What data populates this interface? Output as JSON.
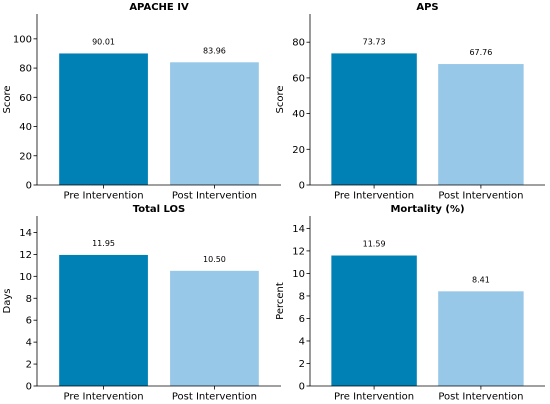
{
  "colors": {
    "pre": "#0081b6",
    "post": "#98c8e7",
    "axis": "#000000",
    "background": "#ffffff"
  },
  "chart_data": [
    {
      "type": "bar",
      "title": "APACHE IV",
      "xlabel": "",
      "ylabel": "Score",
      "categories": [
        "Pre Intervention",
        "Post Intervention"
      ],
      "values": [
        90.01,
        83.96
      ],
      "value_labels": [
        "90.01",
        "83.96"
      ],
      "ylim": [
        0,
        117
      ],
      "yticks": [
        0,
        20,
        40,
        60,
        80,
        100
      ],
      "grid": false,
      "legend": false
    },
    {
      "type": "bar",
      "title": "APS",
      "xlabel": "",
      "ylabel": "Score",
      "categories": [
        "Pre Intervention",
        "Post Intervention"
      ],
      "values": [
        73.73,
        67.76
      ],
      "value_labels": [
        "73.73",
        "67.76"
      ],
      "ylim": [
        0,
        95.8
      ],
      "yticks": [
        0,
        20,
        40,
        60,
        80
      ],
      "grid": false,
      "legend": false
    },
    {
      "type": "bar",
      "title": "Total LOS",
      "xlabel": "",
      "ylabel": "Days",
      "categories": [
        "Pre Intervention",
        "Post Intervention"
      ],
      "values": [
        11.95,
        10.5
      ],
      "value_labels": [
        "11.95",
        "10.50"
      ],
      "ylim": [
        0,
        15.5
      ],
      "yticks": [
        0,
        2,
        4,
        6,
        8,
        10,
        12,
        14
      ],
      "grid": false,
      "legend": false
    },
    {
      "type": "bar",
      "title": "Mortality (%)",
      "xlabel": "",
      "ylabel": "Percent",
      "categories": [
        "Pre Intervention",
        "Post Intervention"
      ],
      "values": [
        11.59,
        8.41
      ],
      "value_labels": [
        "11.59",
        "8.41"
      ],
      "ylim": [
        0,
        15.1
      ],
      "yticks": [
        0,
        2,
        4,
        6,
        8,
        10,
        12,
        14
      ],
      "grid": false,
      "legend": false
    }
  ]
}
